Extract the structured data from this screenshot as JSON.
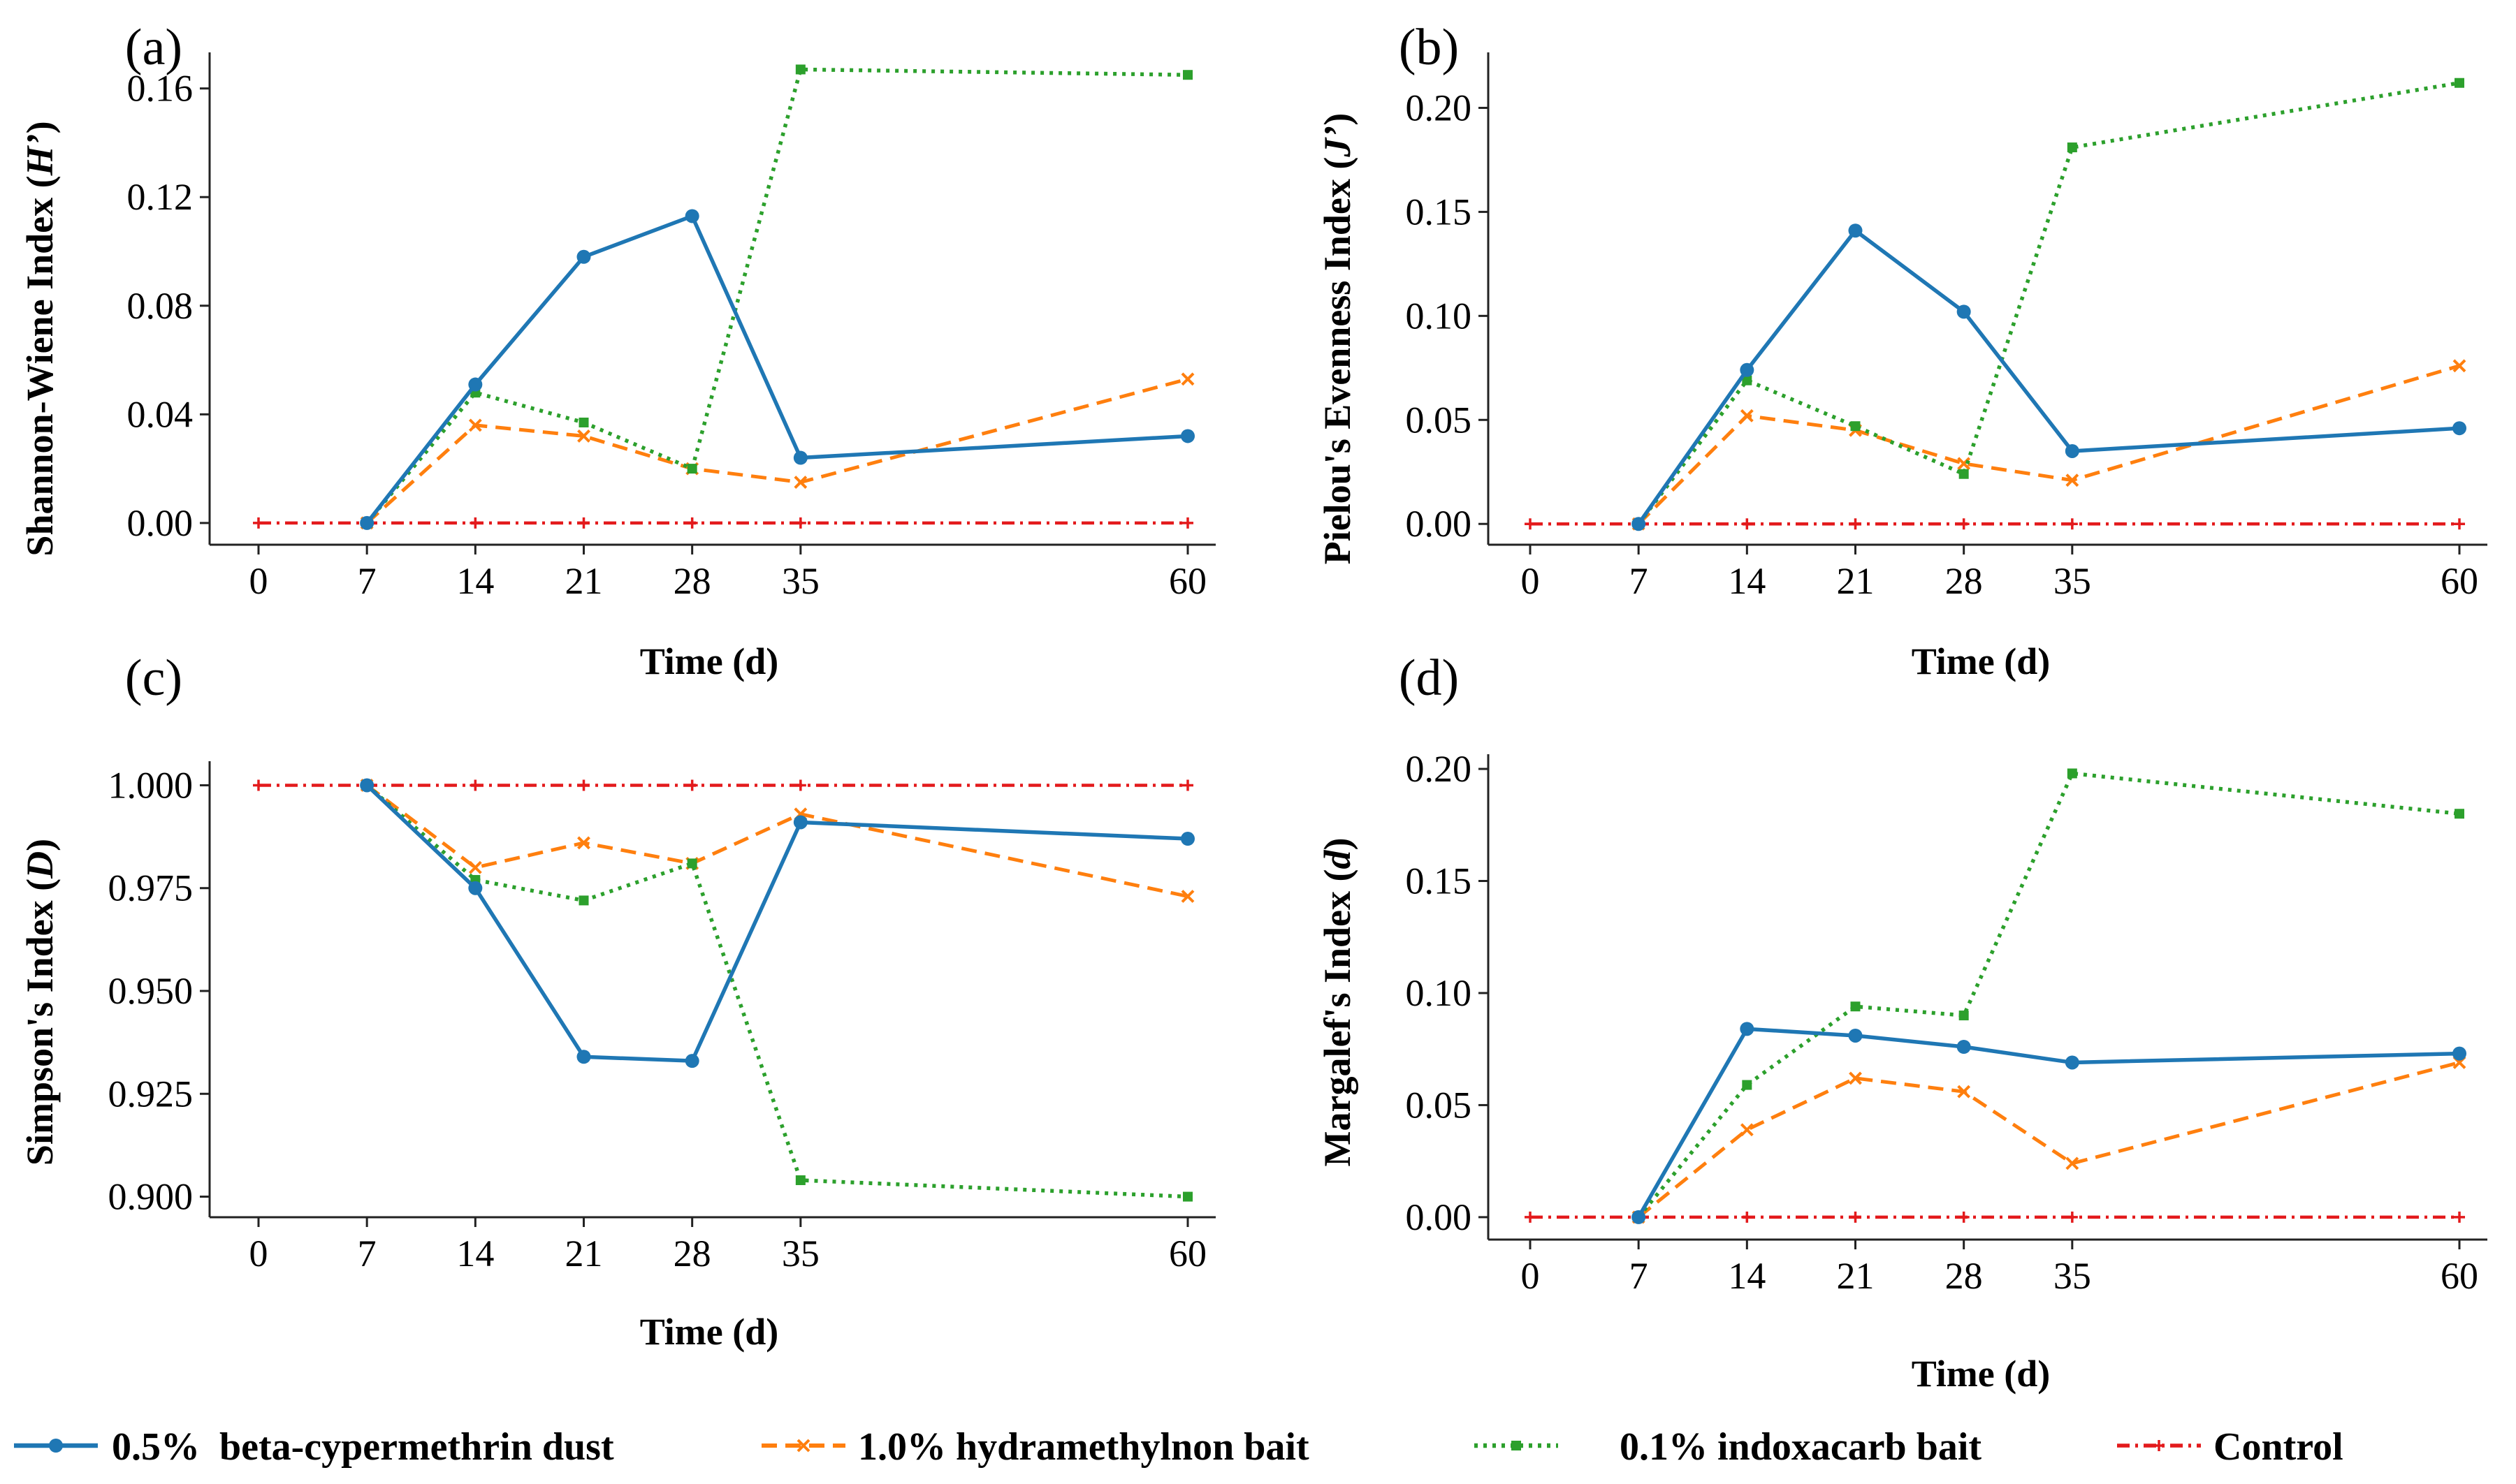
{
  "figure": {
    "legend": [
      {
        "name": "0.5%  beta-cypermethrin dust",
        "color": "#1f77b4",
        "dash": "solid",
        "marker": "circle"
      },
      {
        "name": "1.0% hydramethylnon bait",
        "color": "#ff7f0e",
        "dash": "dashed",
        "marker": "x"
      },
      {
        "name": "0.1% indoxacarb bait",
        "color": "#2ca02c",
        "dash": "dotted",
        "marker": "square"
      },
      {
        "name": "Control",
        "color": "#e31a1c",
        "dash": "dashdot",
        "marker": "plus"
      }
    ]
  },
  "chart_data": [
    {
      "panel": "(a)",
      "type": "line",
      "xlabel": "Time (d)",
      "ylabel": "Shannon-Wiene Index (H’)",
      "ylabel_plain": "Shannon-Wiene Index (",
      "ylabel_italic": "H’",
      "x": [
        0,
        7,
        14,
        21,
        28,
        35,
        60
      ],
      "xticks": [
        "0",
        "7",
        "14",
        "21",
        "28",
        "35",
        "60"
      ],
      "yticks": [
        "0.00",
        "0.04",
        "0.08",
        "0.12",
        "0.16"
      ],
      "ytick_values": [
        0,
        0.04,
        0.08,
        0.12,
        0.16
      ],
      "ylim": [
        -0.008,
        0.172
      ],
      "series": [
        {
          "name": "0.5%  beta-cypermethrin dust",
          "x": [
            7,
            14,
            21,
            28,
            35,
            60
          ],
          "values": [
            0.0,
            0.051,
            0.098,
            0.113,
            0.024,
            0.032
          ]
        },
        {
          "name": "1.0% hydramethylnon bait",
          "x": [
            7,
            14,
            21,
            28,
            35,
            60
          ],
          "values": [
            0.0,
            0.036,
            0.032,
            0.02,
            0.015,
            0.053
          ]
        },
        {
          "name": "0.1% indoxacarb bait",
          "x": [
            7,
            14,
            21,
            28,
            35,
            60
          ],
          "values": [
            0.0,
            0.048,
            0.037,
            0.02,
            0.167,
            0.165
          ]
        },
        {
          "name": "Control",
          "x": [
            0,
            7,
            14,
            21,
            28,
            35,
            60
          ],
          "values": [
            0,
            0,
            0,
            0,
            0,
            0,
            0
          ]
        }
      ]
    },
    {
      "panel": "(b)",
      "type": "line",
      "xlabel": "Time (d)",
      "ylabel": "Pielou's Evenness Index (J’)",
      "ylabel_plain": "Pielou's Evenness Index (",
      "ylabel_italic": "J’",
      "x": [
        0,
        7,
        14,
        21,
        28,
        35,
        60
      ],
      "xticks": [
        "0",
        "7",
        "14",
        "21",
        "28",
        "35",
        "60"
      ],
      "yticks": [
        "0.00",
        "0.05",
        "0.10",
        "0.15",
        "0.20"
      ],
      "ytick_values": [
        0,
        0.05,
        0.1,
        0.15,
        0.2
      ],
      "ylim": [
        -0.01,
        0.225
      ],
      "series": [
        {
          "name": "0.5%  beta-cypermethrin dust",
          "x": [
            7,
            14,
            21,
            28,
            35,
            60
          ],
          "values": [
            0.0,
            0.074,
            0.141,
            0.102,
            0.035,
            0.046
          ]
        },
        {
          "name": "1.0% hydramethylnon bait",
          "x": [
            7,
            14,
            21,
            28,
            35,
            60
          ],
          "values": [
            0.0,
            0.052,
            0.045,
            0.029,
            0.021,
            0.076
          ]
        },
        {
          "name": "0.1% indoxacarb bait",
          "x": [
            7,
            14,
            21,
            28,
            35,
            60
          ],
          "values": [
            0.0,
            0.069,
            0.047,
            0.024,
            0.181,
            0.212
          ]
        },
        {
          "name": "Control",
          "x": [
            0,
            7,
            14,
            21,
            28,
            35,
            60
          ],
          "values": [
            0,
            0,
            0,
            0,
            0,
            0,
            0
          ]
        }
      ]
    },
    {
      "panel": "(c)",
      "type": "line",
      "xlabel": "Time (d)",
      "ylabel": "Simpson's Index (D)",
      "ylabel_plain": "Simpson's Index (",
      "ylabel_italic": "D",
      "x": [
        0,
        7,
        14,
        21,
        28,
        35,
        60
      ],
      "xticks": [
        "0",
        "7",
        "14",
        "21",
        "28",
        "35",
        "60"
      ],
      "yticks": [
        "0.900",
        "0.925",
        "0.950",
        "0.975",
        "1.000"
      ],
      "ytick_values": [
        0.9,
        0.925,
        0.95,
        0.975,
        1.0
      ],
      "ylim": [
        0.895,
        1.005
      ],
      "series": [
        {
          "name": "0.5%  beta-cypermethrin dust",
          "x": [
            7,
            14,
            21,
            28,
            35,
            60
          ],
          "values": [
            1.0,
            0.975,
            0.934,
            0.933,
            0.991,
            0.987
          ]
        },
        {
          "name": "1.0% hydramethylnon bait",
          "x": [
            7,
            14,
            21,
            28,
            35,
            60
          ],
          "values": [
            1.0,
            0.98,
            0.986,
            0.981,
            0.993,
            0.973
          ]
        },
        {
          "name": "0.1% indoxacarb bait",
          "x": [
            7,
            14,
            21,
            28,
            35,
            60
          ],
          "values": [
            1.0,
            0.977,
            0.972,
            0.981,
            0.904,
            0.9
          ]
        },
        {
          "name": "Control",
          "x": [
            0,
            7,
            14,
            21,
            28,
            35,
            60
          ],
          "values": [
            1,
            1,
            1,
            1,
            1,
            1,
            1
          ]
        }
      ]
    },
    {
      "panel": "(d)",
      "type": "line",
      "xlabel": "Time (d)",
      "ylabel": "Margalef's Index (d)",
      "ylabel_plain": "Margalef's Index (",
      "ylabel_italic": "d",
      "x": [
        0,
        7,
        14,
        21,
        28,
        35,
        60
      ],
      "xticks": [
        "0",
        "7",
        "14",
        "21",
        "28",
        "35",
        "60"
      ],
      "yticks": [
        "0.00",
        "0.05",
        "0.10",
        "0.15",
        "0.20"
      ],
      "ytick_values": [
        0,
        0.05,
        0.1,
        0.15,
        0.2
      ],
      "ylim": [
        -0.01,
        0.205
      ],
      "series": [
        {
          "name": "0.5%  beta-cypermethrin dust",
          "x": [
            7,
            14,
            21,
            28,
            35,
            60
          ],
          "values": [
            0.0,
            0.084,
            0.081,
            0.076,
            0.069,
            0.073
          ]
        },
        {
          "name": "1.0% hydramethylnon bait",
          "x": [
            7,
            14,
            21,
            28,
            35,
            60
          ],
          "values": [
            0.0,
            0.039,
            0.062,
            0.056,
            0.024,
            0.069
          ]
        },
        {
          "name": "0.1% indoxacarb bait",
          "x": [
            7,
            14,
            21,
            28,
            35,
            60
          ],
          "values": [
            0.0,
            0.059,
            0.094,
            0.09,
            0.198,
            0.18
          ]
        },
        {
          "name": "Control",
          "x": [
            0,
            7,
            14,
            21,
            28,
            35,
            60
          ],
          "values": [
            0,
            0,
            0,
            0,
            0,
            0,
            0
          ]
        }
      ]
    }
  ]
}
